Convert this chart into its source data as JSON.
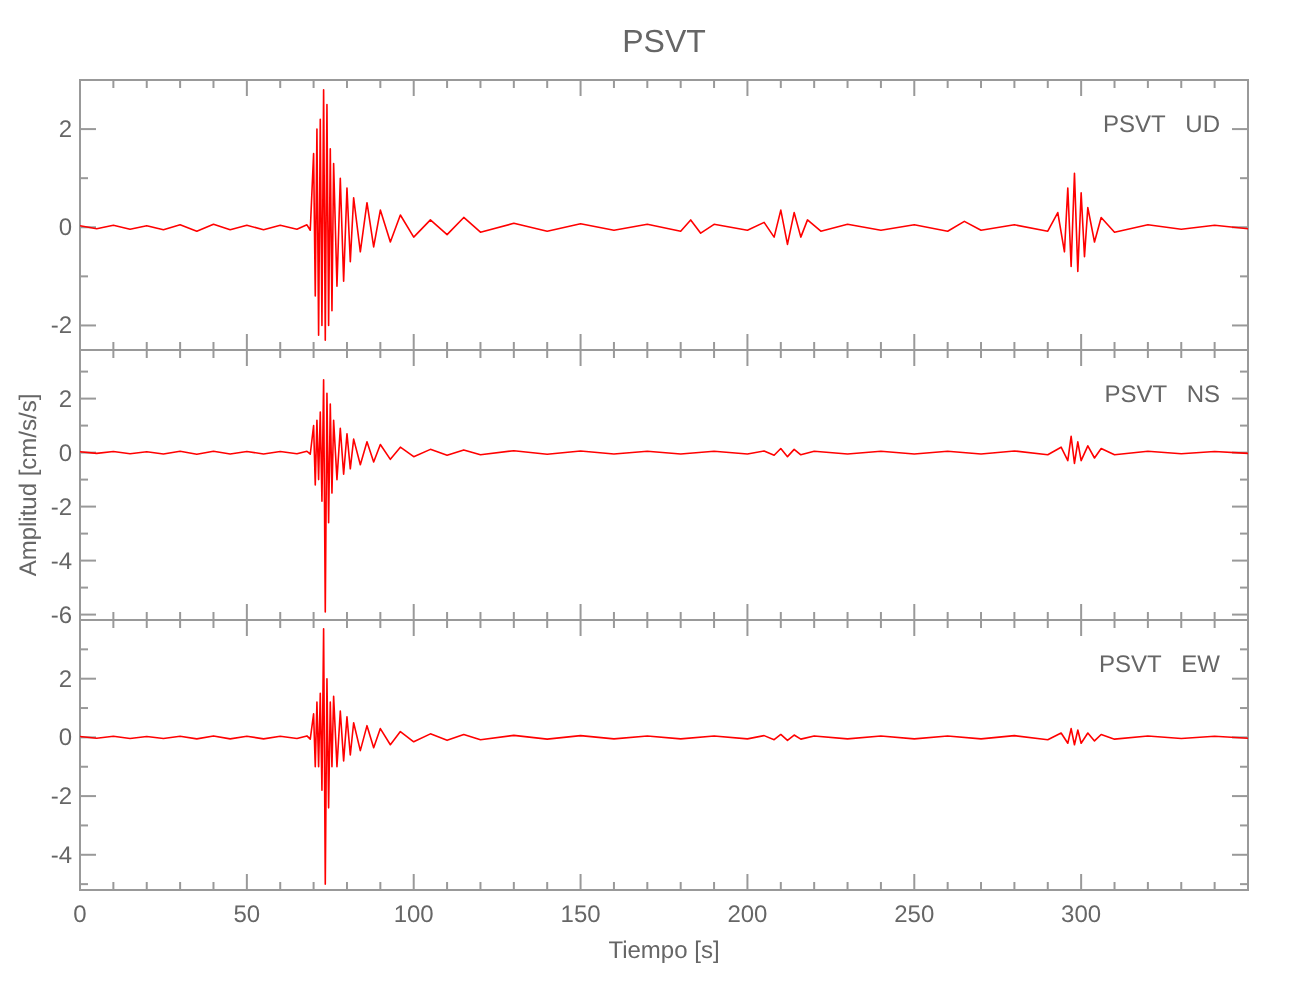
{
  "chart_data": [
    {
      "type": "line",
      "title": "PSVT",
      "annotations": [
        "PSVT   UD"
      ],
      "tick_labels": "y",
      "xlim": [
        0,
        350
      ],
      "xticks": [
        0,
        {
          "value": 10,
          "label": null
        },
        {
          "value": 20,
          "label": null
        },
        {
          "value": 30,
          "label": null
        },
        {
          "value": 40,
          "label": null
        },
        50,
        {
          "value": 60,
          "label": null
        },
        {
          "value": 70,
          "label": null
        },
        {
          "value": 80,
          "label": null
        },
        {
          "value": 90,
          "label": null
        },
        100,
        {
          "value": 110,
          "label": null
        },
        {
          "value": 120,
          "label": null
        },
        {
          "value": 130,
          "label": null
        },
        {
          "value": 140,
          "label": null
        },
        150,
        {
          "value": 160,
          "label": null
        },
        {
          "value": 170,
          "label": null
        },
        {
          "value": 180,
          "label": null
        },
        {
          "value": 190,
          "label": null
        },
        200,
        {
          "value": 210,
          "label": null
        },
        {
          "value": 220,
          "label": null
        },
        {
          "value": 230,
          "label": null
        },
        {
          "value": 240,
          "label": null
        },
        250,
        {
          "value": 260,
          "label": null
        },
        {
          "value": 270,
          "label": null
        },
        {
          "value": 280,
          "label": null
        },
        {
          "value": 290,
          "label": null
        },
        300,
        {
          "value": 310,
          "label": null
        },
        {
          "value": 320,
          "label": null
        },
        {
          "value": 330,
          "label": null
        },
        {
          "value": 340,
          "label": null
        }
      ],
      "ylim": [
        -2.5,
        3
      ],
      "yticks": [
        -2,
        {
          "value": -1,
          "label": null
        },
        0,
        {
          "value": 1,
          "label": null
        },
        2
      ],
      "x": [
        0,
        5,
        10,
        15,
        20,
        25,
        30,
        35,
        40,
        45,
        50,
        55,
        60,
        65,
        68,
        69,
        70,
        70.5,
        71,
        71.5,
        72,
        72.5,
        73,
        73.5,
        74,
        74.5,
        75,
        75.5,
        76,
        77,
        78,
        79,
        80,
        81,
        82,
        84,
        86,
        88,
        90,
        93,
        96,
        100,
        105,
        110,
        115,
        120,
        130,
        140,
        150,
        160,
        170,
        180,
        183,
        186,
        190,
        200,
        205,
        208,
        210,
        212,
        214,
        216,
        218,
        222,
        230,
        240,
        250,
        260,
        265,
        270,
        280,
        290,
        293,
        295,
        296,
        297,
        298,
        299,
        300,
        301,
        302,
        304,
        306,
        310,
        320,
        330,
        340,
        350
      ],
      "series": [
        {
          "color": "#ff0000",
          "values": [
            0.03,
            -0.03,
            0.04,
            -0.04,
            0.03,
            -0.05,
            0.05,
            -0.08,
            0.06,
            -0.05,
            0.04,
            -0.05,
            0.04,
            -0.04,
            0.05,
            -0.06,
            1.5,
            -1.4,
            2.0,
            -2.2,
            2.2,
            -2.0,
            2.8,
            -2.3,
            2.5,
            -2.0,
            1.6,
            -1.7,
            1.3,
            -1.2,
            1.0,
            -1.1,
            0.8,
            -0.7,
            0.6,
            -0.5,
            0.5,
            -0.4,
            0.35,
            -0.3,
            0.25,
            -0.2,
            0.15,
            -0.15,
            0.2,
            -0.1,
            0.08,
            -0.08,
            0.07,
            -0.06,
            0.06,
            -0.08,
            0.15,
            -0.12,
            0.06,
            -0.06,
            0.1,
            -0.2,
            0.35,
            -0.35,
            0.3,
            -0.2,
            0.15,
            -0.08,
            0.06,
            -0.06,
            0.05,
            -0.08,
            0.12,
            -0.06,
            0.05,
            -0.08,
            0.3,
            -0.5,
            0.8,
            -0.8,
            1.1,
            -0.9,
            0.7,
            -0.6,
            0.4,
            -0.3,
            0.2,
            -0.1,
            0.05,
            -0.04,
            0.04,
            -0.03
          ]
        }
      ]
    },
    {
      "type": "line",
      "ylabel": "Amplitud [cm/s/s]",
      "annotations": [
        "PSVT   NS"
      ],
      "tick_labels": "y",
      "xlim": [
        0,
        350
      ],
      "xticks": [
        0,
        {
          "value": 10,
          "label": null
        },
        {
          "value": 20,
          "label": null
        },
        {
          "value": 30,
          "label": null
        },
        {
          "value": 40,
          "label": null
        },
        50,
        {
          "value": 60,
          "label": null
        },
        {
          "value": 70,
          "label": null
        },
        {
          "value": 80,
          "label": null
        },
        {
          "value": 90,
          "label": null
        },
        100,
        {
          "value": 110,
          "label": null
        },
        {
          "value": 120,
          "label": null
        },
        {
          "value": 130,
          "label": null
        },
        {
          "value": 140,
          "label": null
        },
        150,
        {
          "value": 160,
          "label": null
        },
        {
          "value": 170,
          "label": null
        },
        {
          "value": 180,
          "label": null
        },
        {
          "value": 190,
          "label": null
        },
        200,
        {
          "value": 210,
          "label": null
        },
        {
          "value": 220,
          "label": null
        },
        {
          "value": 230,
          "label": null
        },
        {
          "value": 240,
          "label": null
        },
        250,
        {
          "value": 260,
          "label": null
        },
        {
          "value": 270,
          "label": null
        },
        {
          "value": 280,
          "label": null
        },
        {
          "value": 290,
          "label": null
        },
        300,
        {
          "value": 310,
          "label": null
        },
        {
          "value": 320,
          "label": null
        },
        {
          "value": 330,
          "label": null
        },
        {
          "value": 340,
          "label": null
        }
      ],
      "ylim": [
        -6.2,
        3.8
      ],
      "yticks": [
        -6,
        {
          "value": -5,
          "label": null
        },
        -4,
        {
          "value": -3,
          "label": null
        },
        -2,
        {
          "value": -1,
          "label": null
        },
        0,
        {
          "value": 1,
          "label": null
        },
        2,
        {
          "value": 3,
          "label": null
        }
      ],
      "x": [
        0,
        5,
        10,
        15,
        20,
        25,
        30,
        35,
        40,
        45,
        50,
        55,
        60,
        65,
        68,
        69,
        70,
        70.5,
        71,
        71.5,
        72,
        72.5,
        73,
        73.5,
        74,
        74.5,
        75,
        75.5,
        76,
        77,
        78,
        79,
        80,
        81,
        82,
        84,
        86,
        88,
        90,
        93,
        96,
        100,
        105,
        110,
        115,
        120,
        130,
        140,
        150,
        160,
        170,
        180,
        190,
        200,
        205,
        208,
        210,
        212,
        214,
        216,
        220,
        230,
        240,
        250,
        260,
        270,
        280,
        290,
        294,
        296,
        297,
        298,
        299,
        300,
        302,
        304,
        306,
        310,
        320,
        330,
        340,
        350
      ],
      "series": [
        {
          "color": "#ff0000",
          "values": [
            0.03,
            -0.03,
            0.04,
            -0.04,
            0.03,
            -0.05,
            0.05,
            -0.06,
            0.05,
            -0.05,
            0.04,
            -0.05,
            0.04,
            -0.04,
            0.05,
            -0.06,
            1.0,
            -1.2,
            1.2,
            -1.0,
            1.5,
            -1.8,
            2.7,
            -5.9,
            2.2,
            -2.6,
            1.8,
            -1.5,
            1.2,
            -1.0,
            0.9,
            -0.8,
            0.7,
            -0.6,
            0.5,
            -0.45,
            0.4,
            -0.35,
            0.3,
            -0.25,
            0.2,
            -0.15,
            0.12,
            -0.1,
            0.1,
            -0.08,
            0.07,
            -0.06,
            0.06,
            -0.05,
            0.05,
            -0.05,
            0.05,
            -0.05,
            0.06,
            -0.1,
            0.15,
            -0.15,
            0.12,
            -0.08,
            0.05,
            -0.05,
            0.05,
            -0.05,
            0.05,
            -0.05,
            0.06,
            -0.08,
            0.2,
            -0.3,
            0.6,
            -0.4,
            0.4,
            -0.3,
            0.25,
            -0.2,
            0.15,
            -0.08,
            0.05,
            -0.04,
            0.04,
            -0.03
          ]
        }
      ]
    },
    {
      "type": "line",
      "xlabel": "Tiempo [s]",
      "annotations": [
        "PSVT   EW"
      ],
      "xlim": [
        0,
        350
      ],
      "xticks": [
        0,
        {
          "value": 10,
          "label": null
        },
        {
          "value": 20,
          "label": null
        },
        {
          "value": 30,
          "label": null
        },
        {
          "value": 40,
          "label": null
        },
        50,
        {
          "value": 60,
          "label": null
        },
        {
          "value": 70,
          "label": null
        },
        {
          "value": 80,
          "label": null
        },
        {
          "value": 90,
          "label": null
        },
        100,
        {
          "value": 110,
          "label": null
        },
        {
          "value": 120,
          "label": null
        },
        {
          "value": 130,
          "label": null
        },
        {
          "value": 140,
          "label": null
        },
        150,
        {
          "value": 160,
          "label": null
        },
        {
          "value": 170,
          "label": null
        },
        {
          "value": 180,
          "label": null
        },
        {
          "value": 190,
          "label": null
        },
        200,
        {
          "value": 210,
          "label": null
        },
        {
          "value": 220,
          "label": null
        },
        {
          "value": 230,
          "label": null
        },
        {
          "value": 240,
          "label": null
        },
        250,
        {
          "value": 260,
          "label": null
        },
        {
          "value": 270,
          "label": null
        },
        {
          "value": 280,
          "label": null
        },
        {
          "value": 290,
          "label": null
        },
        300,
        {
          "value": 310,
          "label": null
        },
        {
          "value": 320,
          "label": null
        },
        {
          "value": 330,
          "label": null
        },
        {
          "value": 340,
          "label": null
        }
      ],
      "ylim": [
        -5.2,
        4
      ],
      "yticks": [
        {
          "value": -5,
          "label": null
        },
        -4,
        {
          "value": -3,
          "label": null
        },
        -2,
        {
          "value": -1,
          "label": null
        },
        0,
        {
          "value": 1,
          "label": null
        },
        2,
        {
          "value": 3,
          "label": null
        }
      ],
      "x": [
        0,
        5,
        10,
        15,
        20,
        25,
        30,
        35,
        40,
        45,
        50,
        55,
        60,
        65,
        68,
        69,
        70,
        70.5,
        71,
        71.5,
        72,
        72.5,
        73,
        73.5,
        74,
        74.5,
        75,
        75.5,
        76,
        77,
        78,
        79,
        80,
        81,
        82,
        84,
        86,
        88,
        90,
        93,
        96,
        100,
        105,
        110,
        115,
        120,
        130,
        140,
        150,
        160,
        170,
        180,
        190,
        200,
        205,
        208,
        210,
        212,
        214,
        216,
        220,
        230,
        240,
        250,
        260,
        270,
        280,
        290,
        294,
        296,
        297,
        298,
        299,
        300,
        302,
        304,
        306,
        310,
        320,
        330,
        340,
        350
      ],
      "series": [
        {
          "color": "#ff0000",
          "values": [
            0.03,
            -0.03,
            0.04,
            -0.04,
            0.03,
            -0.04,
            0.04,
            -0.05,
            0.05,
            -0.05,
            0.04,
            -0.05,
            0.04,
            -0.04,
            0.05,
            -0.06,
            0.8,
            -1.0,
            1.2,
            -1.0,
            1.5,
            -1.8,
            3.7,
            -5.0,
            2.0,
            -2.4,
            1.2,
            -1.0,
            1.4,
            -1.0,
            0.9,
            -0.8,
            0.7,
            -0.6,
            0.5,
            -0.45,
            0.4,
            -0.35,
            0.3,
            -0.25,
            0.2,
            -0.15,
            0.12,
            -0.1,
            0.1,
            -0.08,
            0.07,
            -0.06,
            0.06,
            -0.05,
            0.05,
            -0.05,
            0.05,
            -0.05,
            0.06,
            -0.08,
            0.1,
            -0.1,
            0.08,
            -0.06,
            0.05,
            -0.05,
            0.05,
            -0.05,
            0.05,
            -0.05,
            0.06,
            -0.08,
            0.15,
            -0.2,
            0.3,
            -0.25,
            0.25,
            -0.2,
            0.15,
            -0.12,
            0.1,
            -0.06,
            0.05,
            -0.04,
            0.04,
            -0.03
          ]
        }
      ]
    }
  ]
}
